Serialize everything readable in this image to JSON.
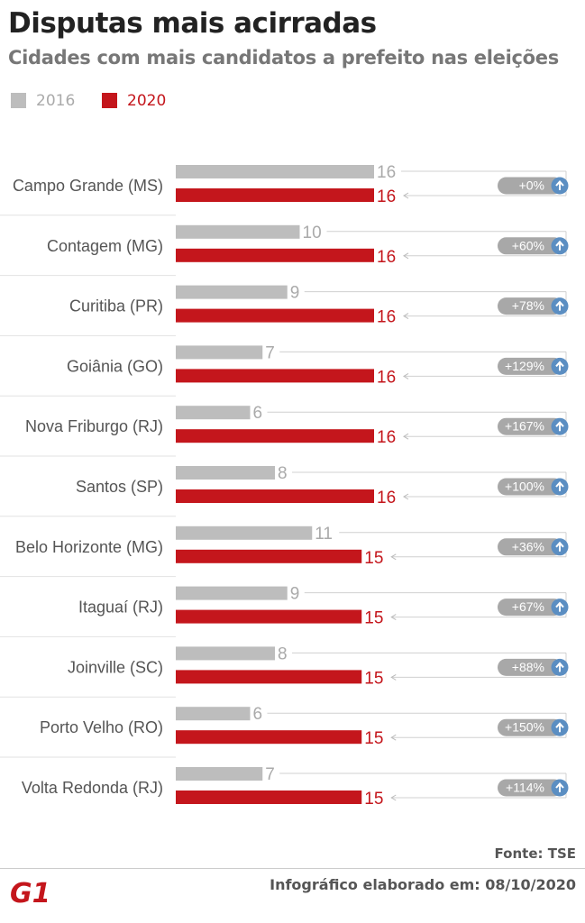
{
  "title": "Disputas mais acirradas",
  "subtitle": "Cidades com mais candidatos a prefeito nas eleições",
  "legend": [
    {
      "label": "2016",
      "color": "#bdbdbd"
    },
    {
      "label": "2020",
      "color": "#c4161c"
    }
  ],
  "chart_data": {
    "type": "bar",
    "orientation": "horizontal",
    "title": "Disputas mais acirradas",
    "subtitle": "Cidades com mais candidatos a prefeito nas eleições",
    "categories": [
      "Campo Grande (MS)",
      "Contagem (MG)",
      "Curitiba (PR)",
      "Goiânia (GO)",
      "Nova Friburgo (RJ)",
      "Santos (SP)",
      "Belo Horizonte (MG)",
      "Itaguaí (RJ)",
      "Joinville (SC)",
      "Porto Velho (RO)",
      "Volta Redonda (RJ)"
    ],
    "series": [
      {
        "name": "2016",
        "color": "#bdbdbd",
        "label_color": "#aaaaaa",
        "values": [
          16,
          10,
          9,
          7,
          6,
          8,
          11,
          9,
          8,
          6,
          7
        ]
      },
      {
        "name": "2020",
        "color": "#c4161c",
        "label_color": "#c4161c",
        "values": [
          16,
          16,
          16,
          16,
          16,
          16,
          15,
          15,
          15,
          15,
          15
        ]
      }
    ],
    "change_labels": [
      "+0%",
      "+60%",
      "+78%",
      "+129%",
      "+167%",
      "+100%",
      "+36%",
      "+67%",
      "+88%",
      "+150%",
      "+114%"
    ],
    "change_icon": "arrow-up-icon",
    "legend_position": "top-left",
    "grid": false
  },
  "source": "Fonte: TSE",
  "logo_text": "G1",
  "logo_color": "#c4161c",
  "credit": "Infográfico elaborado em: 08/10/2020"
}
